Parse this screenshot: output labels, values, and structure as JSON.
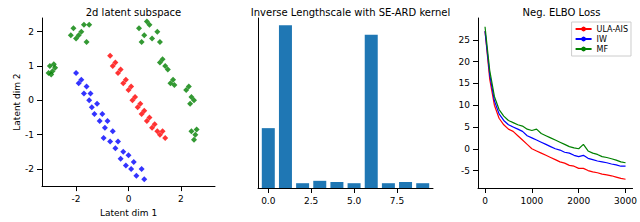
{
  "chart_data": [
    {
      "type": "scatter",
      "title": "2d latent subspace",
      "x_label": "Latent dim 1",
      "y_label": "Latent dim 2",
      "xlim": [
        -3.3,
        3.3
      ],
      "xticks": [
        -2,
        0,
        2
      ],
      "ylim": [
        -2.5,
        2.4
      ],
      "yticks": [
        -2,
        -1,
        0,
        1,
        2
      ],
      "grid": false,
      "series": [
        {
          "color": "#0000ff",
          "marker": "diamond",
          "values": [
            [
              -2.0,
              0.8
            ],
            [
              -1.9,
              0.5
            ],
            [
              -1.8,
              0.6
            ],
            [
              -1.7,
              0.2
            ],
            [
              -1.6,
              0.4
            ],
            [
              -1.5,
              0.0
            ],
            [
              -1.4,
              -0.2
            ],
            [
              -1.45,
              0.2
            ],
            [
              -1.3,
              -0.4
            ],
            [
              -1.2,
              -0.1
            ],
            [
              -1.1,
              -0.6
            ],
            [
              -1.0,
              -0.4
            ],
            [
              -0.9,
              -0.8
            ],
            [
              -0.95,
              -1.1
            ],
            [
              -0.8,
              -0.6
            ],
            [
              -0.7,
              -1.2
            ],
            [
              -0.6,
              -0.9
            ],
            [
              -0.5,
              -1.4
            ],
            [
              -0.4,
              -1.2
            ],
            [
              -0.3,
              -1.7
            ],
            [
              -0.2,
              -1.5
            ],
            [
              -0.1,
              -1.9
            ],
            [
              0.0,
              -1.6
            ],
            [
              0.1,
              -2.0
            ],
            [
              0.2,
              -1.8
            ],
            [
              0.3,
              -2.2
            ],
            [
              0.5,
              -2.0
            ],
            [
              0.6,
              -2.3
            ]
          ]
        },
        {
          "color": "#ff0000",
          "marker": "diamond",
          "values": [
            [
              -0.7,
              1.3
            ],
            [
              -0.6,
              1.0
            ],
            [
              -0.5,
              1.1
            ],
            [
              -0.4,
              0.8
            ],
            [
              -0.3,
              0.9
            ],
            [
              -0.2,
              0.5
            ],
            [
              -0.1,
              0.6
            ],
            [
              0.0,
              0.3
            ],
            [
              0.1,
              0.4
            ],
            [
              0.15,
              0.0
            ],
            [
              0.25,
              0.1
            ],
            [
              0.35,
              -0.2
            ],
            [
              0.45,
              -0.1
            ],
            [
              0.5,
              -0.4
            ],
            [
              0.6,
              -0.3
            ],
            [
              0.7,
              -0.6
            ],
            [
              0.8,
              -0.5
            ],
            [
              0.9,
              -0.8
            ],
            [
              1.0,
              -0.7
            ],
            [
              1.1,
              -0.9
            ],
            [
              1.2,
              -1.0
            ],
            [
              1.3,
              -0.9
            ],
            [
              1.4,
              -1.1
            ]
          ]
        },
        {
          "color": "#008000",
          "marker": "diamond",
          "values": [
            [
              -3.0,
              1.0
            ],
            [
              -2.9,
              0.85
            ],
            [
              -2.8,
              0.95
            ],
            [
              -3.05,
              0.8
            ],
            [
              -2.85,
              1.05
            ],
            [
              -2.95,
              0.75
            ],
            [
              -2.1,
              2.1
            ],
            [
              -1.9,
              1.9
            ],
            [
              -1.7,
              2.2
            ],
            [
              -2.0,
              1.8
            ],
            [
              -1.8,
              2.0
            ],
            [
              -1.6,
              1.7
            ],
            [
              -2.2,
              1.9
            ],
            [
              -1.5,
              2.2
            ],
            [
              0.4,
              2.1
            ],
            [
              0.6,
              1.9
            ],
            [
              0.8,
              2.2
            ],
            [
              0.9,
              1.8
            ],
            [
              0.5,
              1.7
            ],
            [
              1.1,
              2.0
            ],
            [
              0.7,
              2.3
            ],
            [
              1.2,
              1.7
            ],
            [
              1.2,
              1.1
            ],
            [
              1.4,
              1.0
            ],
            [
              1.3,
              1.2
            ],
            [
              1.5,
              0.9
            ],
            [
              1.6,
              0.5
            ],
            [
              1.75,
              0.45
            ],
            [
              1.7,
              0.6
            ],
            [
              2.2,
              0.3
            ],
            [
              2.4,
              0.1
            ],
            [
              2.3,
              0.4
            ],
            [
              2.5,
              0.0
            ],
            [
              2.35,
              -0.1
            ],
            [
              2.4,
              -0.9
            ],
            [
              2.55,
              -1.0
            ],
            [
              2.5,
              -1.15
            ],
            [
              2.6,
              -0.85
            ]
          ]
        }
      ]
    },
    {
      "type": "bar",
      "title": "Inverse Lengthscale with SE-ARD kernel",
      "x": [
        0,
        1,
        2,
        3,
        4,
        5,
        6,
        7,
        8,
        9
      ],
      "values": [
        0.25,
        0.68,
        0.02,
        0.03,
        0.025,
        0.02,
        0.64,
        0.02,
        0.025,
        0.02
      ],
      "color": "#1f77b4",
      "xlim": [
        -0.6,
        9.6
      ],
      "xticks": [
        {
          "value": 0,
          "label": "0.0"
        },
        {
          "value": 2.5,
          "label": "2.5"
        },
        {
          "value": 5,
          "label": "5.0"
        },
        {
          "value": 7.5,
          "label": "7.5"
        }
      ],
      "ylim": [
        0,
        0.71
      ],
      "tick_labels": "x",
      "grid": false
    },
    {
      "type": "line",
      "title": "Neg. ELBO Loss",
      "x": [
        0,
        100,
        200,
        300,
        400,
        500,
        600,
        700,
        800,
        900,
        1000,
        1100,
        1200,
        1300,
        1400,
        1500,
        1600,
        1700,
        1800,
        1900,
        2000,
        2100,
        2200,
        2300,
        2400,
        2500,
        2600,
        2700,
        2800,
        2900,
        3000
      ],
      "xlim": [
        -150,
        3150
      ],
      "xticks": [
        0,
        1000,
        2000,
        3000
      ],
      "ylim": [
        -9,
        30
      ],
      "yticks": [
        -5,
        0,
        5,
        10,
        15,
        20,
        25
      ],
      "grid": false,
      "legend": "upper right",
      "series": [
        {
          "name": "ULA-AIS",
          "color": "#ff0000",
          "values": [
            27,
            16,
            10,
            7,
            5.5,
            4.5,
            4,
            3,
            2,
            1,
            0,
            -0.5,
            -1,
            -1.5,
            -2,
            -2.5,
            -3,
            -3.3,
            -3.8,
            -4,
            -4.5,
            -4.5,
            -5,
            -5.3,
            -5.5,
            -5.8,
            -6,
            -6.2,
            -6.5,
            -6.8,
            -7
          ]
        },
        {
          "name": "IW",
          "color": "#0000ff",
          "values": [
            27,
            17,
            11,
            8,
            6.5,
            5.5,
            5,
            4.5,
            4,
            3,
            2.5,
            2,
            1.5,
            1,
            0.5,
            0,
            -0.3,
            -0.8,
            -1,
            -1.5,
            -1.8,
            -1.5,
            -2.2,
            -2.5,
            -2.8,
            -3,
            -3.2,
            -3.5,
            -3.7,
            -4,
            -4
          ]
        },
        {
          "name": "MF",
          "color": "#008000",
          "values": [
            28,
            18,
            12,
            9,
            7.5,
            6.5,
            6,
            5.5,
            5.2,
            4.5,
            4.2,
            4.5,
            3.5,
            3,
            2.5,
            2,
            1.5,
            1,
            0.5,
            0.2,
            0,
            1,
            -0.5,
            -1,
            -1.3,
            -1.8,
            -2,
            -2.3,
            -2.6,
            -3,
            -3.2
          ]
        }
      ]
    }
  ]
}
